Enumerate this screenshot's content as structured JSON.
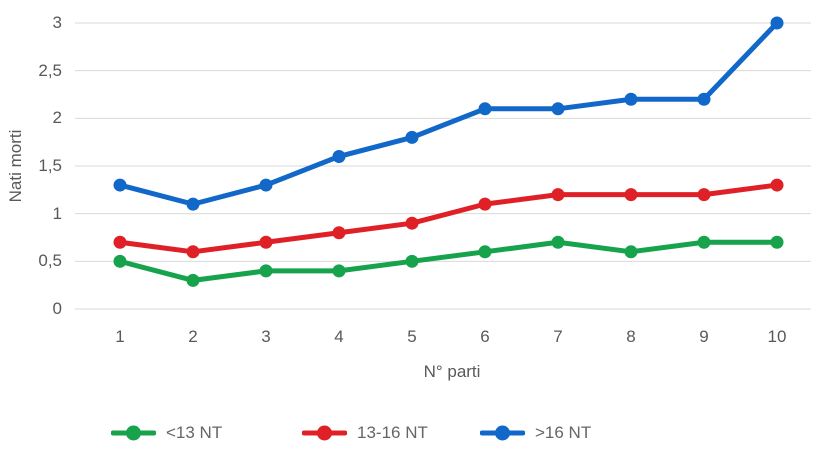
{
  "chart_data": {
    "type": "line",
    "title": "",
    "xlabel": "N° parti",
    "ylabel": "Nati morti",
    "x": [
      1,
      2,
      3,
      4,
      5,
      6,
      7,
      8,
      9,
      10
    ],
    "x_tick_labels": [
      "1",
      "2",
      "3",
      "4",
      "5",
      "6",
      "7",
      "8",
      "9",
      "10"
    ],
    "y_ticks": [
      0,
      0.5,
      1,
      1.5,
      2,
      2.5,
      3
    ],
    "y_tick_labels": [
      "0",
      "0,5",
      "1",
      "1,5",
      "2",
      "2,5",
      "3"
    ],
    "ylim": [
      0,
      3
    ],
    "grid": "horizontal",
    "legend_position": "bottom",
    "series": [
      {
        "name": "<13 NT",
        "color": "#17A24C",
        "values": [
          0.5,
          0.3,
          0.4,
          0.4,
          0.5,
          0.6,
          0.7,
          0.6,
          0.7,
          0.7
        ]
      },
      {
        "name": "13-16 NT",
        "color": "#DF2127",
        "values": [
          0.7,
          0.6,
          0.7,
          0.8,
          0.9,
          1.1,
          1.2,
          1.2,
          1.2,
          1.3
        ]
      },
      {
        "name": ">16 NT",
        "color": "#1168C8",
        "values": [
          1.3,
          1.1,
          1.3,
          1.6,
          1.8,
          2.1,
          2.1,
          2.2,
          2.2,
          3.0
        ]
      }
    ],
    "colors": {
      "grid": "#D9D9D9",
      "axis_text": "#595959",
      "legend_text": "#666666",
      "background": "#FFFFFF"
    }
  }
}
